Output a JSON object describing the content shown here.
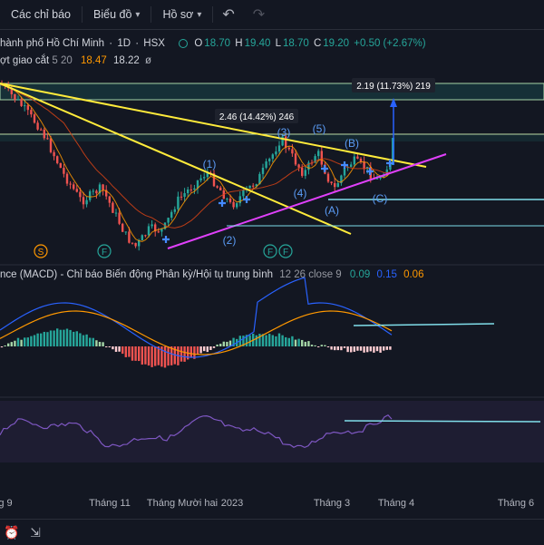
{
  "toolbar": {
    "indicators_label": "Các chỉ báo",
    "chart_label": "Biểu đồ",
    "profile_label": "Hồ sơ"
  },
  "symbol": {
    "name": "hành phố Hồ Chí Minh",
    "timeframe": "1D",
    "exchange": "HSX",
    "open_label": "O",
    "open": "18.70",
    "high_label": "H",
    "high": "19.40",
    "low_label": "L",
    "low": "18.70",
    "close_label": "C",
    "close": "19.20",
    "change": "+0.50 (+2.67%)"
  },
  "ma_legend": {
    "name": "ợt giao cắt",
    "params": "5 20",
    "v1": "18.47",
    "v2": "18.22",
    "icon": "eye-slash-icon"
  },
  "annotations": {
    "measure1": "2.46 (14.42%) 246",
    "measure2": "2.19 (11.73%) 219",
    "waves": [
      "(1)",
      "(2)",
      "(3)",
      "(4)",
      "(5)",
      "(A)",
      "(B)",
      "(C)"
    ],
    "markers": [
      "S",
      "F",
      "F",
      "F"
    ]
  },
  "macd_legend": {
    "name": "nce (MACD) - Chỉ báo Biến động Phân kỳ/Hội tụ trung bình",
    "params": "12 26 close 9",
    "hist": "0.09",
    "macd": "0.15",
    "signal": "0.06"
  },
  "colors": {
    "background": "#131722",
    "up": "#26a69a",
    "down": "#ef5350",
    "macd_line": "#2962ff",
    "signal_line": "#ff9800",
    "trendline": "#ffeb3b",
    "support": "#e040fb",
    "rsi": "#7e57c2",
    "level": "#80deea"
  },
  "time_axis": [
    "g 9",
    "Tháng 11",
    "Tháng Mười hai",
    "2023",
    "Tháng 3",
    "Tháng 4",
    "Tháng 6"
  ],
  "chart_data": [
    {
      "type": "candlestick",
      "title": "hành phố Hồ Chí Minh · 1D · HSX",
      "series": [
        {
          "name": "ợt giao cắt 5",
          "value": 18.47
        },
        {
          "name": "ợt giao cắt 20",
          "value": 18.22
        }
      ],
      "last_close": 19.2,
      "measures": [
        {
          "label": "2.46 (14.42%) 246",
          "change": 2.46,
          "percent": 14.42
        },
        {
          "label": "2.19 (11.73%) 219",
          "change": 2.19,
          "percent": 11.73
        }
      ]
    },
    {
      "type": "bar",
      "title": "MACD 12 26 close 9",
      "series": [
        {
          "name": "Histogram",
          "value": 0.09
        },
        {
          "name": "MACD",
          "value": 0.15
        },
        {
          "name": "Signal",
          "value": 0.06
        }
      ]
    },
    {
      "type": "line",
      "series": [
        {
          "name": "RSI"
        }
      ]
    }
  ]
}
